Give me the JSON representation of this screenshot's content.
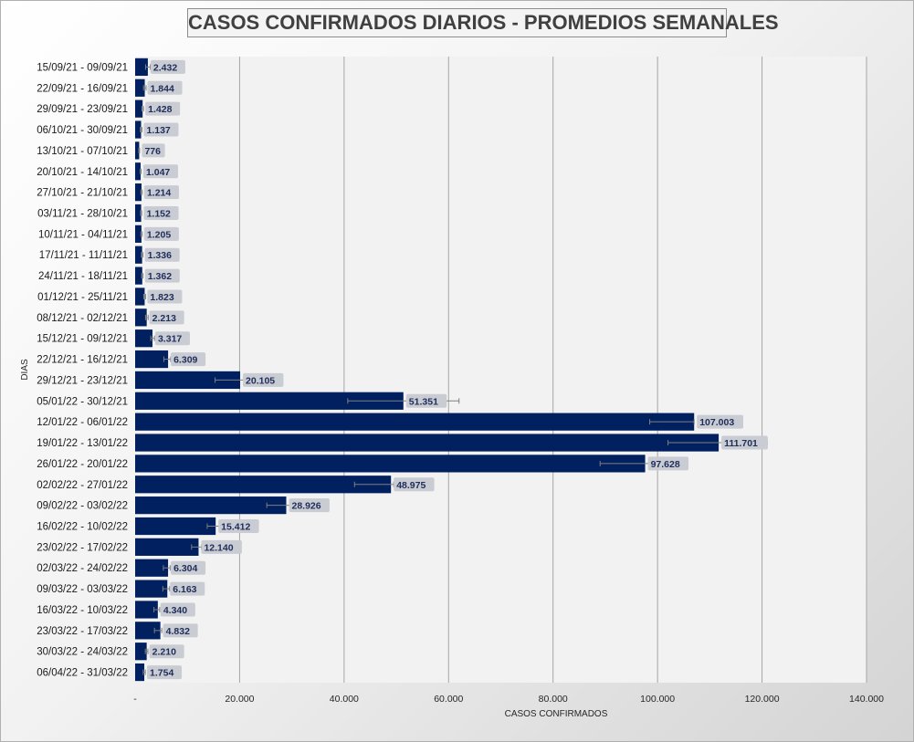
{
  "chart_data": {
    "type": "bar",
    "orientation": "horizontal",
    "title": "CASOS CONFIRMADOS DIARIOS - PROMEDIOS SEMANALES",
    "xlabel": "CASOS CONFIRMADOS",
    "ylabel": "DIAS",
    "xlim": [
      0,
      140000
    ],
    "x_ticks": [
      {
        "value": 0,
        "label": "-"
      },
      {
        "value": 20000,
        "label": "20.000"
      },
      {
        "value": 40000,
        "label": "40.000"
      },
      {
        "value": 60000,
        "label": "60.000"
      },
      {
        "value": 80000,
        "label": "80.000"
      },
      {
        "value": 100000,
        "label": "100.000"
      },
      {
        "value": 120000,
        "label": "120.000"
      },
      {
        "value": 140000,
        "label": "140.000"
      }
    ],
    "grid": "vertical",
    "bar_color": "#002060",
    "error_bars": true,
    "categories": [
      "15/09/21 - 09/09/21",
      "22/09/21 - 16/09/21",
      "29/09/21 - 23/09/21",
      "06/10/21 - 30/09/21",
      "13/10/21 - 07/10/21",
      "20/10/21 - 14/10/21",
      "27/10/21 - 21/10/21",
      "03/11/21 - 28/10/21",
      "10/11/21 - 04/11/21",
      "17/11/21 - 11/11/21",
      "24/11/21 - 18/11/21",
      "01/12/21 - 25/11/21",
      "08/12/21 - 02/12/21",
      "15/12/21 - 09/12/21",
      "22/12/21 - 16/12/21",
      "29/12/21 - 23/12/21",
      "05/01/22 - 30/12/21",
      "12/01/22 - 06/01/22",
      "19/01/22 - 13/01/22",
      "26/01/22 - 20/01/22",
      "02/02/22 - 27/01/22",
      "09/02/22 - 03/02/22",
      "16/02/22 - 10/02/22",
      "23/02/22 - 17/02/22",
      "02/03/22 - 24/02/22",
      "09/03/22 - 03/03/22",
      "16/03/22 - 10/03/22",
      "23/03/22 - 17/03/22",
      "30/03/22 - 24/03/22",
      "06/04/22 - 31/03/22"
    ],
    "values": [
      2432,
      1844,
      1428,
      1137,
      776,
      1047,
      1214,
      1152,
      1205,
      1336,
      1362,
      1823,
      2213,
      3317,
      6309,
      20105,
      51351,
      107003,
      111701,
      97628,
      48975,
      28926,
      15412,
      12140,
      6304,
      6163,
      4340,
      4832,
      2210,
      1754
    ],
    "value_labels": [
      "2.432",
      "1.844",
      "1.428",
      "1.137",
      "776",
      "1.047",
      "1.214",
      "1.152",
      "1.205",
      "1.336",
      "1.362",
      "1.823",
      "2.213",
      "3.317",
      "6.309",
      "20.105",
      "51.351",
      "107.003",
      "111.701",
      "97.628",
      "48.975",
      "28.926",
      "15.412",
      "12.140",
      "6.304",
      "6.163",
      "4.340",
      "4.832",
      "2.210",
      "1.754"
    ],
    "error_low": [
      2000,
      1600,
      1300,
      1000,
      700,
      950,
      1100,
      1050,
      1100,
      1200,
      1250,
      1650,
      2000,
      3000,
      5500,
      15300,
      40700,
      98500,
      102000,
      89000,
      42000,
      25200,
      13800,
      10800,
      5400,
      5300,
      3600,
      3700,
      1950,
      1550
    ],
    "error_high": [
      2900,
      2100,
      1600,
      1300,
      850,
      1150,
      1350,
      1250,
      1350,
      1500,
      1500,
      2000,
      2500,
      3700,
      6800,
      21000,
      62000,
      107003,
      121000,
      105500,
      49500,
      29700,
      16300,
      12700,
      6700,
      6600,
      4700,
      5100,
      2450,
      1950
    ]
  }
}
